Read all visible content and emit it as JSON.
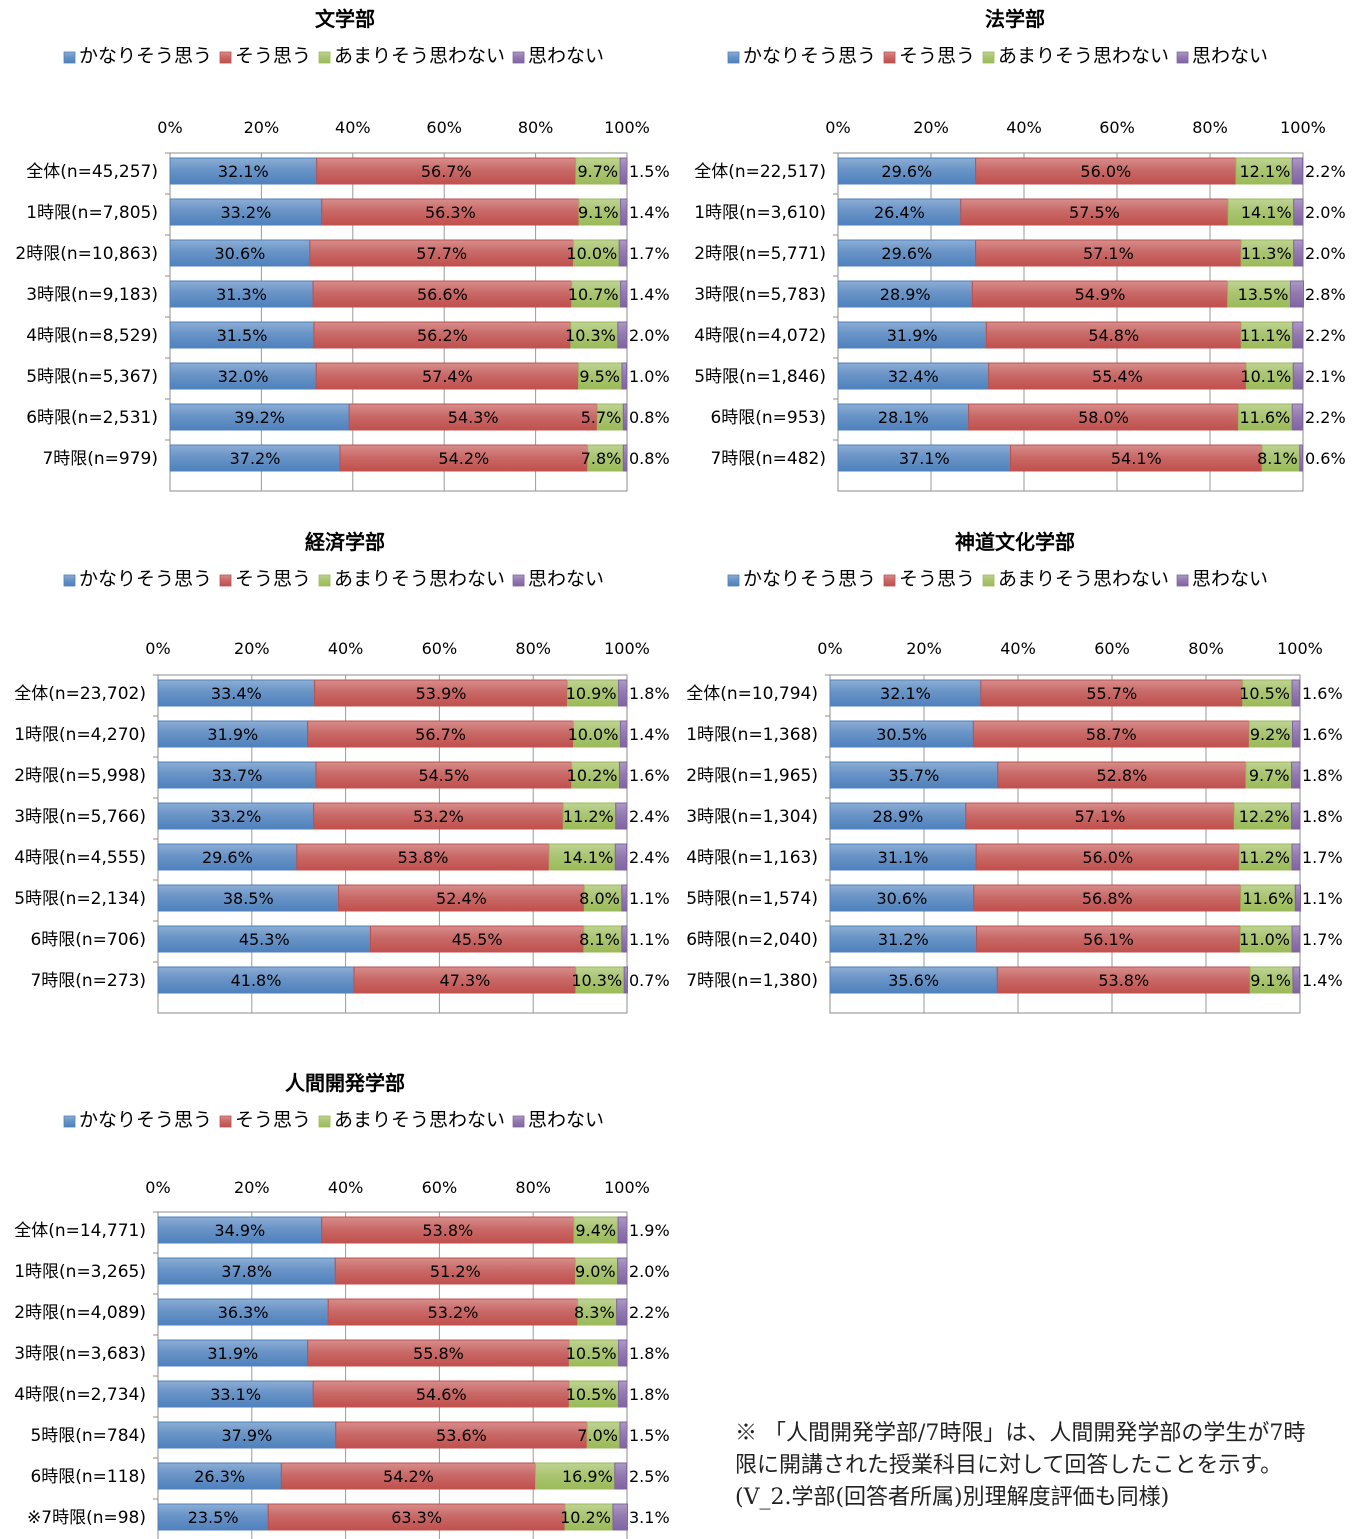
{
  "legend_items": [
    {
      "label": "かなりそう思う",
      "color": "#4f81bd"
    },
    {
      "label": "そう思う",
      "color": "#c0504d"
    },
    {
      "label": "あまりそう思わない",
      "color": "#9bbb59"
    },
    {
      "label": "思わない",
      "color": "#8064a2"
    }
  ],
  "note": "※ 「人間開発学部/7時限」は、人間開発学部の学生が7時限に開講された授業科目に対して回答したことを示す。(V_2.学部(回答者所属)別理解度評価も同様)",
  "chart_data": [
    {
      "type": "bar",
      "orientation": "horizontal",
      "stacked": "percent",
      "title": "文学部",
      "categories": [
        "全体(n=45,257)",
        "1時限(n=7,805)",
        "2時限(n=10,863)",
        "3時限(n=9,183)",
        "4時限(n=8,529)",
        "5時限(n=5,367)",
        "6時限(n=2,531)",
        "7時限(n=979)"
      ],
      "series": [
        {
          "name": "かなりそう思う",
          "values": [
            32.1,
            33.2,
            30.6,
            31.3,
            31.5,
            32.0,
            39.2,
            37.2
          ]
        },
        {
          "name": "そう思う",
          "values": [
            56.7,
            56.3,
            57.7,
            56.6,
            56.2,
            57.4,
            54.3,
            54.2
          ]
        },
        {
          "name": "あまりそう思わない",
          "values": [
            9.7,
            9.1,
            10.0,
            10.7,
            10.3,
            9.5,
            5.7,
            7.8
          ]
        },
        {
          "name": "思わない",
          "values": [
            1.5,
            1.4,
            1.7,
            1.4,
            2.0,
            1.0,
            0.8,
            0.8
          ]
        }
      ],
      "xticks": [
        "0%",
        "20%",
        "40%",
        "60%",
        "80%",
        "100%"
      ],
      "xlim": [
        0,
        100
      ],
      "legend": "top"
    },
    {
      "type": "bar",
      "orientation": "horizontal",
      "stacked": "percent",
      "title": "法学部",
      "categories": [
        "全体(n=22,517)",
        "1時限(n=3,610)",
        "2時限(n=5,771)",
        "3時限(n=5,783)",
        "4時限(n=4,072)",
        "5時限(n=1,846)",
        "6時限(n=953)",
        "7時限(n=482)"
      ],
      "series": [
        {
          "name": "かなりそう思う",
          "values": [
            29.6,
            26.4,
            29.6,
            28.9,
            31.9,
            32.4,
            28.1,
            37.1
          ]
        },
        {
          "name": "そう思う",
          "values": [
            56.0,
            57.5,
            57.1,
            54.9,
            54.8,
            55.4,
            58.0,
            54.1
          ]
        },
        {
          "name": "あまりそう思わない",
          "values": [
            12.1,
            14.1,
            11.3,
            13.5,
            11.1,
            10.1,
            11.6,
            8.1
          ]
        },
        {
          "name": "思わない",
          "values": [
            2.2,
            2.0,
            2.0,
            2.8,
            2.2,
            2.1,
            2.2,
            0.6
          ]
        }
      ],
      "xticks": [
        "0%",
        "20%",
        "40%",
        "60%",
        "80%",
        "100%"
      ],
      "xlim": [
        0,
        100
      ],
      "legend": "top"
    },
    {
      "type": "bar",
      "orientation": "horizontal",
      "stacked": "percent",
      "title": "経済学部",
      "categories": [
        "全体(n=23,702)",
        "1時限(n=4,270)",
        "2時限(n=5,998)",
        "3時限(n=5,766)",
        "4時限(n=4,555)",
        "5時限(n=2,134)",
        "6時限(n=706)",
        "7時限(n=273)"
      ],
      "series": [
        {
          "name": "かなりそう思う",
          "values": [
            33.4,
            31.9,
            33.7,
            33.2,
            29.6,
            38.5,
            45.3,
            41.8
          ]
        },
        {
          "name": "そう思う",
          "values": [
            53.9,
            56.7,
            54.5,
            53.2,
            53.8,
            52.4,
            45.5,
            47.3
          ]
        },
        {
          "name": "あまりそう思わない",
          "values": [
            10.9,
            10.0,
            10.2,
            11.2,
            14.1,
            8.0,
            8.1,
            10.3
          ]
        },
        {
          "name": "思わない",
          "values": [
            1.8,
            1.4,
            1.6,
            2.4,
            2.4,
            1.1,
            1.1,
            0.7
          ]
        }
      ],
      "xticks": [
        "0%",
        "20%",
        "40%",
        "60%",
        "80%",
        "100%"
      ],
      "xlim": [
        0,
        100
      ],
      "legend": "top"
    },
    {
      "type": "bar",
      "orientation": "horizontal",
      "stacked": "percent",
      "title": "神道文化学部",
      "categories": [
        "全体(n=10,794)",
        "1時限(n=1,368)",
        "2時限(n=1,965)",
        "3時限(n=1,304)",
        "4時限(n=1,163)",
        "5時限(n=1,574)",
        "6時限(n=2,040)",
        "7時限(n=1,380)"
      ],
      "series": [
        {
          "name": "かなりそう思う",
          "values": [
            32.1,
            30.5,
            35.7,
            28.9,
            31.1,
            30.6,
            31.2,
            35.6
          ]
        },
        {
          "name": "そう思う",
          "values": [
            55.7,
            58.7,
            52.8,
            57.1,
            56.0,
            56.8,
            56.1,
            53.8
          ]
        },
        {
          "name": "あまりそう思わない",
          "values": [
            10.5,
            9.2,
            9.7,
            12.2,
            11.2,
            11.6,
            11.0,
            9.1
          ]
        },
        {
          "name": "思わない",
          "values": [
            1.6,
            1.6,
            1.8,
            1.8,
            1.7,
            1.1,
            1.7,
            1.4
          ]
        }
      ],
      "xticks": [
        "0%",
        "20%",
        "40%",
        "60%",
        "80%",
        "100%"
      ],
      "xlim": [
        0,
        100
      ],
      "legend": "top"
    },
    {
      "type": "bar",
      "orientation": "horizontal",
      "stacked": "percent",
      "title": "人間開発学部",
      "categories": [
        "全体(n=14,771)",
        "1時限(n=3,265)",
        "2時限(n=4,089)",
        "3時限(n=3,683)",
        "4時限(n=2,734)",
        "5時限(n=784)",
        "6時限(n=118)",
        "※7時限(n=98)"
      ],
      "series": [
        {
          "name": "かなりそう思う",
          "values": [
            34.9,
            37.8,
            36.3,
            31.9,
            33.1,
            37.9,
            26.3,
            23.5
          ]
        },
        {
          "name": "そう思う",
          "values": [
            53.8,
            51.2,
            53.2,
            55.8,
            54.6,
            53.6,
            54.2,
            63.3
          ]
        },
        {
          "name": "あまりそう思わない",
          "values": [
            9.4,
            9.0,
            8.3,
            10.5,
            10.5,
            7.0,
            16.9,
            10.2
          ]
        },
        {
          "name": "思わない",
          "values": [
            1.9,
            2.0,
            2.2,
            1.8,
            1.8,
            1.5,
            2.5,
            3.1
          ]
        }
      ],
      "xticks": [
        "0%",
        "20%",
        "40%",
        "60%",
        "80%",
        "100%"
      ],
      "xlim": [
        0,
        100
      ],
      "legend": "top"
    }
  ]
}
